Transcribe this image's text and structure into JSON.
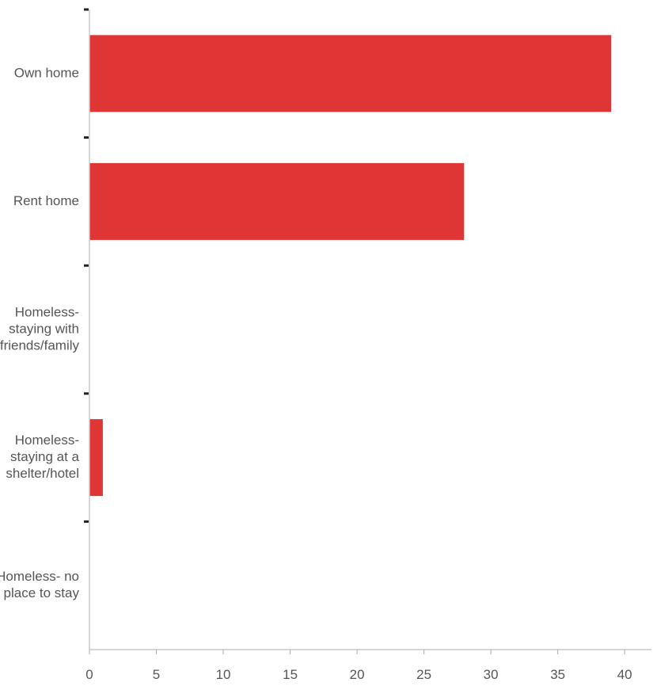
{
  "chart_data": {
    "type": "bar",
    "orientation": "horizontal",
    "categories": [
      "Own home",
      "Rent home",
      "Homeless- staying with friends/family",
      "Homeless- staying at a shelter/hotel",
      "Homeless- no place to stay"
    ],
    "category_lines": [
      [
        "Own home"
      ],
      [
        "Rent home"
      ],
      [
        "Homeless-",
        "staying with",
        "friends/family"
      ],
      [
        "Homeless-",
        "staying at a",
        "shelter/hotel"
      ],
      [
        "Homeless- no",
        "place to stay"
      ]
    ],
    "values": [
      39,
      28,
      0,
      1,
      0
    ],
    "xlim": [
      0,
      42
    ],
    "xticks": [
      0,
      5,
      10,
      15,
      20,
      25,
      30,
      35,
      40
    ],
    "title": "",
    "xlabel": "",
    "ylabel": "",
    "grid": false,
    "bar_color": "#e03535"
  }
}
